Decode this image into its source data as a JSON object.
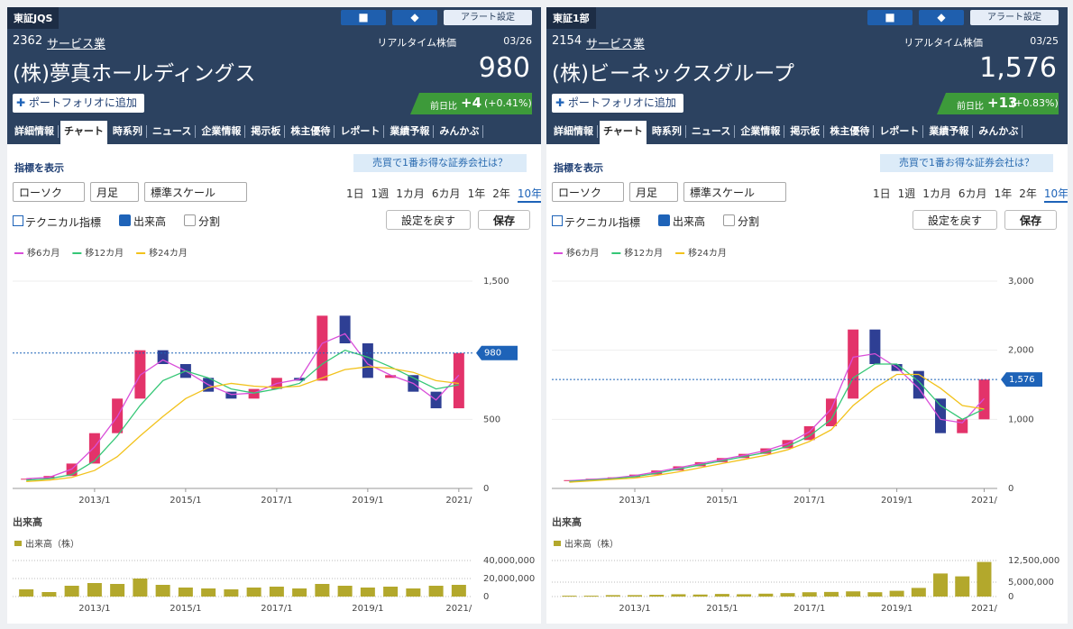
{
  "panels": [
    {
      "market": "東証JQS",
      "code": "2362",
      "sector": "サービス業",
      "realtime_label": "リアルタイム株価",
      "date": "03/26",
      "name": "(株)夢真ホールディングス",
      "price": "980",
      "alert_button": "アラート設定",
      "add_button": "ポートフォリオに追加",
      "change_label": "前日比",
      "change": "+4",
      "change_pct": "(+0.41%)",
      "tabs": [
        "詳細情報",
        "チャート",
        "時系列",
        "ニュース",
        "企業情報",
        "掲示板",
        "株主優待",
        "レポート",
        "業績予報",
        "みんかぶ"
      ],
      "selected_tab": 1,
      "indicator_toggle": "指標を表示",
      "broker_link": "売買で1番お得な証券会社は？",
      "selects": [
        "ローソク",
        "月足",
        "標準スケール"
      ],
      "periods": [
        "1日",
        "1週",
        "1カ月",
        "6カ月",
        "1年",
        "2年",
        "10年"
      ],
      "selected_period": 6,
      "technical": "テクニカル指標",
      "volume_check": "出来高",
      "volume_checked": true,
      "split_check": "分割",
      "split_checked": false,
      "reset_button": "設定を戻す",
      "save_button": "保存",
      "price_chart": {
        "type": "candlestick",
        "up_color": "#e3336a",
        "down_color": "#2e3f94",
        "x": [
          2011.5,
          2012,
          2012.5,
          2013,
          2013.5,
          2014,
          2014.5,
          2015,
          2015.5,
          2016,
          2016.5,
          2017,
          2017.5,
          2018,
          2018.5,
          2019,
          2019.5,
          2020,
          2020.5,
          2021
        ],
        "close": [
          70,
          90,
          180,
          400,
          650,
          1000,
          900,
          800,
          700,
          650,
          720,
          800,
          780,
          1250,
          1050,
          800,
          820,
          700,
          580,
          980
        ],
        "ma": [
          {
            "name": "移6カ月",
            "color": "#d94fd9",
            "values": [
              70,
              80,
              140,
              300,
              520,
              820,
              930,
              850,
              750,
              680,
              690,
              760,
              790,
              1050,
              1120,
              900,
              820,
              760,
              640,
              820
            ]
          },
          {
            "name": "移12カ月",
            "color": "#35c776",
            "values": [
              60,
              70,
              100,
              200,
              380,
              600,
              780,
              850,
              800,
              720,
              690,
              720,
              760,
              900,
              1000,
              950,
              880,
              800,
              720,
              750
            ]
          },
          {
            "name": "移24カ月",
            "color": "#f2c21b",
            "values": [
              50,
              60,
              80,
              130,
              230,
              380,
              520,
              650,
              730,
              760,
              740,
              730,
              740,
              800,
              860,
              880,
              870,
              840,
              780,
              760
            ]
          }
        ],
        "xlim": [
          2011.2,
          2021.3
        ],
        "ylim": [
          0,
          1500
        ],
        "yticks": [
          0,
          500,
          {
            "value": 1500,
            "label": "1,500"
          }
        ],
        "xticks": [
          {
            "value": 2013,
            "label": "2013/1"
          },
          {
            "value": 2015,
            "label": "2015/1"
          },
          {
            "value": 2017,
            "label": "2017/1"
          },
          {
            "value": 2019,
            "label": "2019/1"
          },
          {
            "value": 2021,
            "label": "2021/"
          }
        ],
        "price_line": {
          "value": 980,
          "label": "980"
        }
      },
      "volume_chart": {
        "type": "bar",
        "title": "出来高",
        "series": [
          {
            "name": "出来高（株）",
            "color": "#b3a82c",
            "values": [
              8000000,
              5000000,
              12000000,
              15000000,
              14000000,
              20000000,
              13000000,
              10000000,
              9000000,
              8000000,
              10000000,
              11000000,
              9000000,
              14000000,
              12000000,
              10000000,
              11000000,
              9000000,
              12000000,
              13000000
            ]
          }
        ],
        "ylim": [
          0,
          40000000
        ],
        "yticks": [
          0,
          {
            "value": 20000000,
            "label": "20,000,000"
          },
          {
            "value": 40000000,
            "label": "40,000,000"
          }
        ],
        "xticks": [
          {
            "value": 2013,
            "label": "2013/1"
          },
          {
            "value": 2015,
            "label": "2015/1"
          },
          {
            "value": 2017,
            "label": "2017/1"
          },
          {
            "value": 2019,
            "label": "2019/1"
          },
          {
            "value": 2021,
            "label": "2021/"
          }
        ]
      }
    },
    {
      "market": "東証1部",
      "code": "2154",
      "sector": "サービス業",
      "realtime_label": "リアルタイム株価",
      "date": "03/25",
      "name": "(株)ビーネックスグループ",
      "price": "1,576",
      "alert_button": "アラート設定",
      "add_button": "ポートフォリオに追加",
      "change_label": "前日比",
      "change": "+13",
      "change_pct": "(+0.83%)",
      "tabs": [
        "詳細情報",
        "チャート",
        "時系列",
        "ニュース",
        "企業情報",
        "掲示板",
        "株主優待",
        "レポート",
        "業績予報",
        "みんかぶ"
      ],
      "selected_tab": 1,
      "indicator_toggle": "指標を表示",
      "broker_link": "売買で1番お得な証券会社は？",
      "selects": [
        "ローソク",
        "月足",
        "標準スケール"
      ],
      "periods": [
        "1日",
        "1週",
        "1カ月",
        "6カ月",
        "1年",
        "2年",
        "10年"
      ],
      "selected_period": 6,
      "technical": "テクニカル指標",
      "volume_check": "出来高",
      "volume_checked": true,
      "split_check": "分割",
      "split_checked": false,
      "reset_button": "設定を戻す",
      "save_button": "保存",
      "price_chart": {
        "type": "candlestick",
        "up_color": "#e3336a",
        "down_color": "#2e3f94",
        "x": [
          2011.5,
          2012,
          2012.5,
          2013,
          2013.5,
          2014,
          2014.5,
          2015,
          2015.5,
          2016,
          2016.5,
          2017,
          2017.5,
          2018,
          2018.5,
          2019,
          2019.5,
          2020,
          2020.5,
          2021
        ],
        "close": [
          120,
          140,
          160,
          200,
          260,
          320,
          380,
          440,
          500,
          580,
          700,
          900,
          1300,
          2300,
          1800,
          1700,
          1300,
          800,
          1000,
          1576
        ],
        "ma": [
          {
            "name": "移6カ月",
            "color": "#d94fd9",
            "values": [
              110,
              130,
              150,
              185,
              240,
              300,
              360,
              420,
              480,
              550,
              650,
              820,
              1150,
              1900,
              1950,
              1750,
              1450,
              1000,
              950,
              1300
            ]
          },
          {
            "name": "移12カ月",
            "color": "#35c776",
            "values": [
              100,
              120,
              140,
              170,
              220,
              280,
              340,
              400,
              460,
              520,
              610,
              760,
              1000,
              1600,
              1800,
              1800,
              1550,
              1200,
              1000,
              1150
            ]
          },
          {
            "name": "移24カ月",
            "color": "#f2c21b",
            "values": [
              90,
              110,
              130,
              150,
              190,
              240,
              300,
              360,
              420,
              480,
              560,
              680,
              850,
              1200,
              1450,
              1650,
              1650,
              1450,
              1200,
              1150
            ]
          }
        ],
        "xlim": [
          2011.1,
          2021.3
        ],
        "ylim": [
          0,
          3000
        ],
        "yticks": [
          0,
          {
            "value": 1000,
            "label": "1,000"
          },
          {
            "value": 2000,
            "label": "2,000"
          },
          {
            "value": 3000,
            "label": "3,000"
          }
        ],
        "xticks": [
          {
            "value": 2013,
            "label": "2013/1"
          },
          {
            "value": 2015,
            "label": "2015/1"
          },
          {
            "value": 2017,
            "label": "2017/1"
          },
          {
            "value": 2019,
            "label": "2019/1"
          },
          {
            "value": 2021,
            "label": "2021/"
          }
        ],
        "price_line": {
          "value": 1576,
          "label": "1,576"
        }
      },
      "volume_chart": {
        "type": "bar",
        "title": "出来高",
        "series": [
          {
            "name": "出来高（株）",
            "color": "#b3a82c",
            "values": [
              300000,
              300000,
              500000,
              500000,
              600000,
              800000,
              700000,
              900000,
              800000,
              1000000,
              1200000,
              1500000,
              1600000,
              1800000,
              1500000,
              2000000,
              3000000,
              8000000,
              7000000,
              12000000
            ]
          }
        ],
        "ylim": [
          0,
          12500000
        ],
        "yticks": [
          0,
          {
            "value": 5000000,
            "label": "5,000,000"
          },
          {
            "value": 12500000,
            "label": "12,500,000"
          }
        ],
        "xticks": [
          {
            "value": 2013,
            "label": "2013/1"
          },
          {
            "value": 2015,
            "label": "2015/1"
          },
          {
            "value": 2017,
            "label": "2017/1"
          },
          {
            "value": 2019,
            "label": "2019/1"
          },
          {
            "value": 2021,
            "label": "2021/"
          }
        ]
      }
    }
  ]
}
